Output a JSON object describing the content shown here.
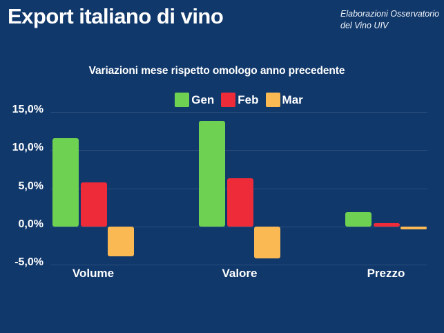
{
  "header": {
    "title": "Export italiano di vino",
    "credit_line1": "Elaborazioni Osservatorio",
    "credit_line2": "del Vino UIV"
  },
  "chart_data": {
    "type": "bar",
    "title": "Variazioni mese rispetto omologo anno precedente",
    "categories": [
      "Volume",
      "Valore",
      "Prezzo"
    ],
    "series": [
      {
        "name": "Gen",
        "color": "#6FD152",
        "values": [
          11.6,
          13.8,
          1.9
        ]
      },
      {
        "name": "Feb",
        "color": "#ED2B39",
        "values": [
          5.8,
          6.3,
          0.4
        ]
      },
      {
        "name": "Mar",
        "color": "#FBB954",
        "values": [
          -3.9,
          -4.2,
          -0.4
        ]
      }
    ],
    "xlabel": "",
    "ylabel": "",
    "ylim": [
      -5,
      15
    ],
    "yticks": [
      "15,0%",
      "10,0%",
      "5,0%",
      "0,0%",
      "-5,0%"
    ],
    "ytick_values": [
      15,
      10,
      5,
      0,
      -5
    ],
    "grid": true,
    "legend_position": "top-center"
  },
  "colors": {
    "background": "#10386B",
    "text": "#FFFFFF",
    "gridline": "rgba(255,255,255,0.12)",
    "gen": "#6FD152",
    "feb": "#ED2B39",
    "mar": "#FBB954"
  }
}
